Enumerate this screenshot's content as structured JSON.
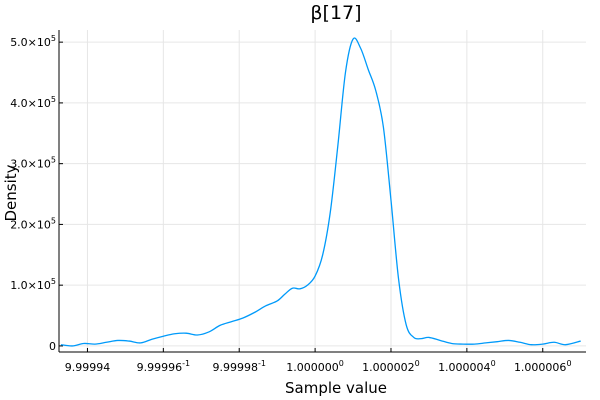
{
  "chart_data": {
    "type": "line",
    "title": "β[17]",
    "xlabel": "Sample value",
    "ylabel": "Density",
    "grid": true,
    "legend": "none",
    "line_color": "#009AFA",
    "x_ticks": [
      {
        "base": "9.99994",
        "sup": ""
      },
      {
        "base": "9.99996",
        "sup": "-1"
      },
      {
        "base": "9.99998",
        "sup": "-1"
      },
      {
        "base": "1.000000",
        "sup": "0"
      },
      {
        "base": "1.000002",
        "sup": "0"
      },
      {
        "base": "1.000004",
        "sup": "0"
      },
      {
        "base": "1.000006",
        "sup": "0"
      }
    ],
    "x_ticks_raw": [
      "9.99994009.99996009.99998001000000100000020100000401000006",
      "×10⁻¹",
      "×10⁻¹",
      "×10⁻¹",
      "×10⁰",
      "×10⁰",
      "×10⁰",
      "×10⁰"
    ],
    "y_ticks": [
      {
        "base": "0",
        "sup": ""
      },
      {
        "base": "1.0×10",
        "sup": "5"
      },
      {
        "base": "2.0×10",
        "sup": "5"
      },
      {
        "base": "3.0×10",
        "sup": "5"
      },
      {
        "base": "4.0×10",
        "sup": "5"
      },
      {
        "base": "5.0×10",
        "sup": "5"
      }
    ],
    "y_tick_values": [
      0,
      100000,
      200000,
      300000,
      400000,
      500000
    ],
    "xlim": [
      0.99999325,
      1.00000714
    ],
    "ylim": [
      -10000,
      520000
    ],
    "x_tick_values": [
      0.999994,
      0.999996,
      0.999998,
      1.0,
      1.000002,
      1.000004,
      1.000006
    ],
    "series": [
      {
        "x": [
          0.9999933,
          0.9999936,
          0.9999939,
          0.9999942,
          0.9999945,
          0.9999948,
          0.9999951,
          0.9999954,
          0.9999957,
          0.999996,
          0.9999963,
          0.9999966,
          0.9999969,
          0.9999972,
          0.9999975,
          0.9999978,
          0.9999981,
          0.9999984,
          0.9999987,
          0.999999,
          0.9999992,
          0.9999994,
          0.9999996,
          0.9999998,
          1.0,
          1.0000002,
          1.0000004,
          1.0000006,
          1.0000008,
          1.000001,
          1.0000012,
          1.0000014,
          1.0000016,
          1.0000018,
          1.000002,
          1.0000022,
          1.0000024,
          1.0000026,
          1.0000028,
          1.000003,
          1.0000033,
          1.0000036,
          1.0000039,
          1.0000042,
          1.0000045,
          1.0000048,
          1.0000051,
          1.0000054,
          1.0000057,
          1.000006,
          1.0000063,
          1.0000066,
          1.000007
        ],
        "y": [
          2000,
          0,
          4000,
          3000,
          6000,
          9000,
          8000,
          5000,
          11000,
          16000,
          20000,
          21000,
          18000,
          23000,
          34000,
          40000,
          46000,
          55000,
          66000,
          74000,
          85000,
          95000,
          94000,
          100000,
          115000,
          150000,
          220000,
          330000,
          450000,
          505000,
          490000,
          455000,
          420000,
          360000,
          240000,
          110000,
          35000,
          14000,
          12000,
          14000,
          9000,
          4000,
          3000,
          3000,
          5000,
          7000,
          9000,
          6000,
          2000,
          3000,
          6000,
          2000,
          8000
        ]
      }
    ]
  }
}
